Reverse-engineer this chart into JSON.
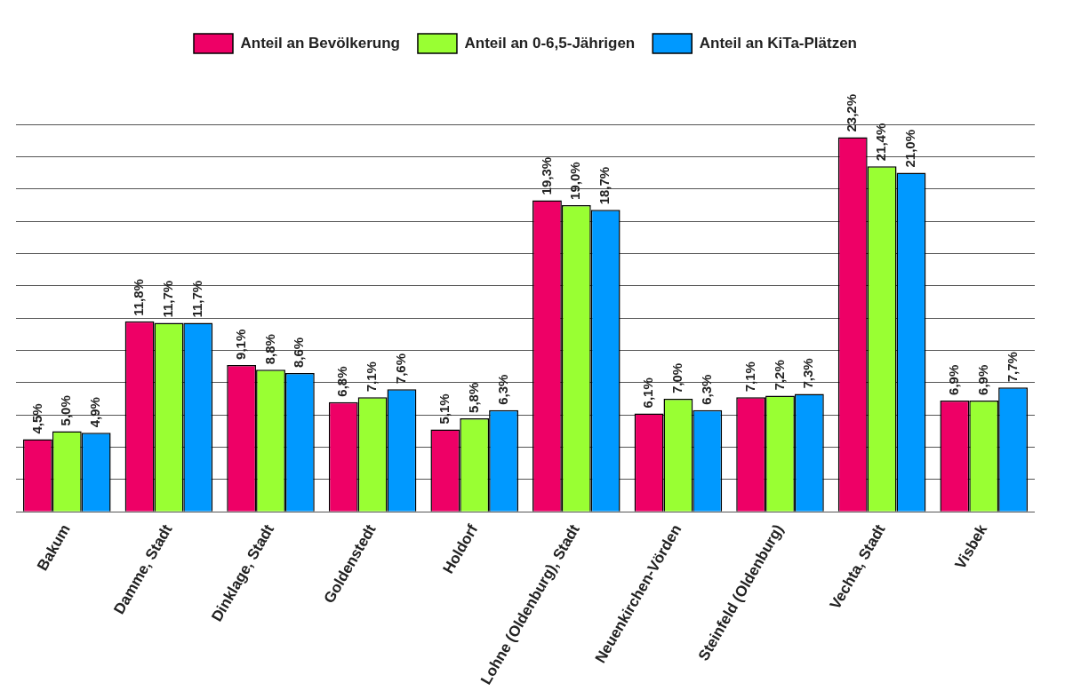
{
  "chart_data": {
    "type": "bar",
    "categories": [
      "Bakum",
      "Damme, Stadt",
      "Dinklage, Stadt",
      "Goldenstedt",
      "Holdorf",
      "Lohne (Oldenburg), Stadt",
      "Neuenkirchen-Vörden",
      "Steinfeld (Oldenburg)",
      "Vechta, Stadt",
      "Visbek"
    ],
    "series": [
      {
        "name": "Anteil an Bevölkerung",
        "color": "#ee0066",
        "values": [
          4.5,
          11.8,
          9.1,
          6.8,
          5.1,
          19.3,
          6.1,
          7.1,
          23.2,
          6.9
        ],
        "value_labels": [
          "4,5%",
          "11,8%",
          "9,1%",
          "6,8%",
          "5,1%",
          "19,3%",
          "6,1%",
          "7,1%",
          "23,2%",
          "6,9%"
        ]
      },
      {
        "name": "Anteil an 0-6,5-Jährigen",
        "color": "#99ff33",
        "values": [
          5.0,
          11.7,
          8.8,
          7.1,
          5.8,
          19.0,
          7.0,
          7.2,
          21.4,
          6.9
        ],
        "value_labels": [
          "5,0%",
          "11,7%",
          "8,8%",
          "7,1%",
          "5,8%",
          "19,0%",
          "7,0%",
          "7,2%",
          "21,4%",
          "6,9%"
        ]
      },
      {
        "name": "Anteil an KiTa-Plätzen",
        "color": "#0099ff",
        "values": [
          4.9,
          11.7,
          8.6,
          7.6,
          6.3,
          18.7,
          6.3,
          7.3,
          21.0,
          7.7
        ],
        "value_labels": [
          "4,9%",
          "11,7%",
          "8,6%",
          "7,6%",
          "6,3%",
          "18,7%",
          "6,3%",
          "7,3%",
          "21,0%",
          "7,7%"
        ]
      }
    ],
    "ylim": [
      0,
      24
    ],
    "tick_labels": "x",
    "grid": "y",
    "legend": "top"
  }
}
